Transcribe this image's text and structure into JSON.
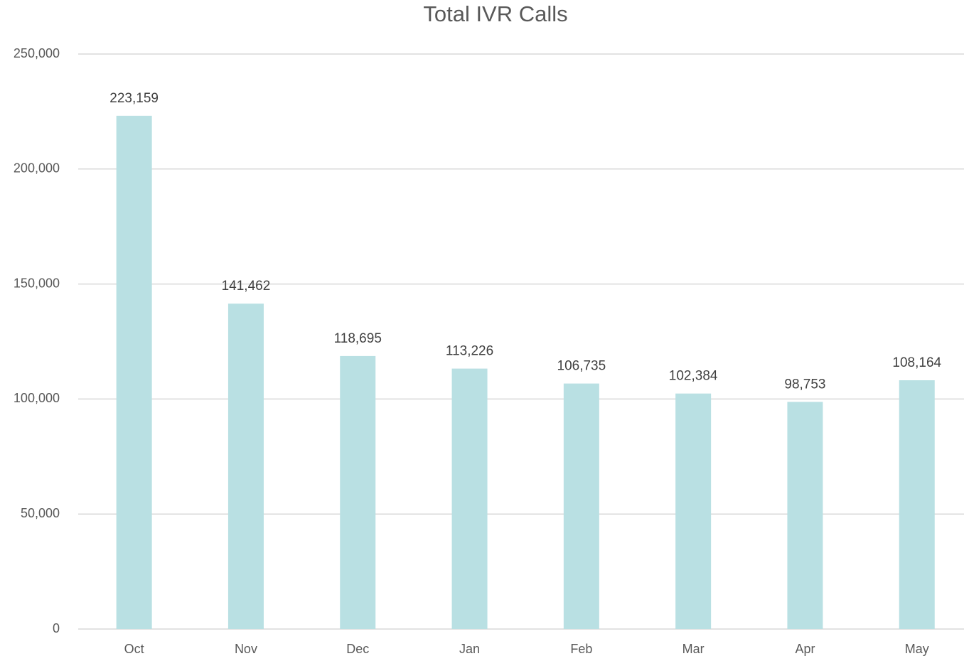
{
  "chart_data": {
    "type": "bar",
    "title": "Total IVR Calls",
    "categories": [
      "Oct",
      "Nov",
      "Dec",
      "Jan",
      "Feb",
      "Mar",
      "Apr",
      "May"
    ],
    "values": [
      223159,
      141462,
      118695,
      113226,
      106735,
      102384,
      98753,
      108164
    ],
    "value_labels": [
      "223,159",
      "141,462",
      "118,695",
      "113,226",
      "106,735",
      "102,384",
      "98,753",
      "108,164"
    ],
    "color": "#b9e0e3",
    "ylim": [
      0,
      250000
    ],
    "yticks": [
      0,
      {
        "value": 50000,
        "label": "50,000"
      },
      {
        "value": 100000,
        "label": "100,000"
      },
      {
        "value": 150000,
        "label": "150,000"
      },
      {
        "value": 200000,
        "label": "200,000"
      },
      {
        "value": 250000,
        "label": "250,000"
      }
    ],
    "grid": true
  }
}
